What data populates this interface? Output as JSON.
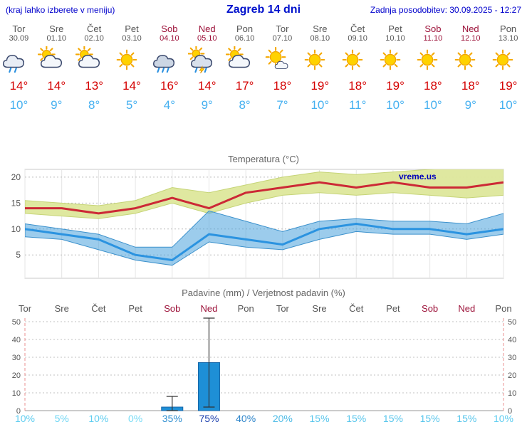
{
  "header": {
    "note": "(kraj lahko izberete v meniju)",
    "title": "Zagreb 14 dni",
    "updated": "Zadnja posodobitev: 30.09.2025 - 12:27"
  },
  "colors": {
    "header_blue": "#0000cc",
    "high_temp": "#d40000",
    "low_temp": "#45b0f0",
    "weekday_text": "#555555",
    "weekend_text": "#9c1038",
    "max_line": "#cc2936",
    "min_line": "#2b93e0",
    "max_band_fill": "#dde79b",
    "min_band_fill": "#4ba3dc",
    "bar_fill": "#1e8fd6",
    "bar_stroke": "#1566a8",
    "watermark_blue": "#0000bb"
  },
  "days": [
    {
      "name": "Tor",
      "date": "30.09",
      "weekend": false,
      "icon": "cloud-rain",
      "high": 14,
      "low": 10
    },
    {
      "name": "Sre",
      "date": "01.10",
      "weekend": false,
      "icon": "sun-cloud",
      "high": 14,
      "low": 9
    },
    {
      "name": "Čet",
      "date": "02.10",
      "weekend": false,
      "icon": "sun-cloud",
      "high": 13,
      "low": 8
    },
    {
      "name": "Pet",
      "date": "03.10",
      "weekend": false,
      "icon": "sun",
      "high": 14,
      "low": 5
    },
    {
      "name": "Sob",
      "date": "04.10",
      "weekend": true,
      "icon": "heavy-rain",
      "high": 16,
      "low": 4
    },
    {
      "name": "Ned",
      "date": "05.10",
      "weekend": true,
      "icon": "storm",
      "high": 14,
      "low": 9
    },
    {
      "name": "Pon",
      "date": "06.10",
      "weekend": false,
      "icon": "sun-cloud",
      "high": 17,
      "low": 8
    },
    {
      "name": "Tor",
      "date": "07.10",
      "weekend": false,
      "icon": "sun-small-cloud",
      "high": 18,
      "low": 7
    },
    {
      "name": "Sre",
      "date": "08.10",
      "weekend": false,
      "icon": "sun",
      "high": 19,
      "low": 10
    },
    {
      "name": "Čet",
      "date": "09.10",
      "weekend": false,
      "icon": "sun",
      "high": 18,
      "low": 11
    },
    {
      "name": "Pet",
      "date": "10.10",
      "weekend": false,
      "icon": "sun",
      "high": 19,
      "low": 10
    },
    {
      "name": "Sob",
      "date": "11.10",
      "weekend": true,
      "icon": "sun",
      "high": 18,
      "low": 10
    },
    {
      "name": "Ned",
      "date": "12.10",
      "weekend": true,
      "icon": "sun",
      "high": 18,
      "low": 9
    },
    {
      "name": "Pon",
      "date": "13.10",
      "weekend": false,
      "icon": "sun",
      "high": 19,
      "low": 10
    }
  ],
  "chart_data": [
    {
      "type": "line",
      "title": "Temperatura (°C)",
      "categories": [
        "Tor",
        "Sre",
        "Čet",
        "Pet",
        "Sob",
        "Ned",
        "Pon",
        "Tor",
        "Sre",
        "Čet",
        "Pet",
        "Sob",
        "Ned",
        "Pon"
      ],
      "ylim": [
        0.5,
        21.5
      ],
      "yticks": [
        5,
        10,
        15,
        20
      ],
      "watermark": "vreme.us",
      "legend_position": "none",
      "grid": true,
      "series": [
        {
          "name": "max-temperature",
          "values": [
            14,
            14,
            13,
            14,
            16,
            14,
            17,
            18,
            19,
            18,
            19,
            18,
            18,
            19
          ],
          "band_high": [
            15.5,
            15,
            14.5,
            15.5,
            18,
            17,
            18.5,
            20,
            21,
            20.5,
            21,
            21.5,
            22,
            22.5
          ],
          "band_low": [
            13,
            12.5,
            12,
            13,
            15,
            13,
            15,
            16.5,
            17,
            16.5,
            17,
            16.5,
            16,
            16.5
          ]
        },
        {
          "name": "min-temperature",
          "values": [
            10,
            9,
            8,
            5,
            4,
            9,
            8,
            7,
            10,
            11,
            10,
            10,
            9,
            10
          ],
          "band_high": [
            11,
            10,
            9,
            6.5,
            6.5,
            13.5,
            11.5,
            9.5,
            11.5,
            12,
            11.5,
            11.5,
            11,
            13
          ],
          "band_low": [
            8.5,
            8,
            6,
            4,
            3,
            7.5,
            6.5,
            6,
            8,
            9.5,
            9,
            9,
            8,
            9
          ]
        }
      ]
    },
    {
      "type": "bar",
      "title": "Padavine (mm) / Verjetnost padavin (%)",
      "categories": [
        "Tor",
        "Sre",
        "Čet",
        "Pet",
        "Sob",
        "Ned",
        "Pon",
        "Tor",
        "Sre",
        "Čet",
        "Pet",
        "Sob",
        "Ned",
        "Pon"
      ],
      "weekend_flags": [
        false,
        false,
        false,
        false,
        true,
        true,
        false,
        false,
        false,
        false,
        false,
        true,
        true,
        false
      ],
      "ylim": [
        0,
        52
      ],
      "yticks": [
        0,
        10,
        20,
        30,
        40,
        50
      ],
      "values": [
        0,
        0,
        0,
        0,
        2,
        27,
        0,
        0,
        0,
        0,
        0,
        0,
        0,
        0
      ],
      "whiskers": [
        null,
        null,
        null,
        null,
        [
          0,
          8
        ],
        [
          2,
          52
        ],
        null,
        null,
        null,
        null,
        null,
        null,
        null,
        null
      ],
      "probabilities": [
        {
          "label": "10%",
          "color": "#5ecdf0"
        },
        {
          "label": "5%",
          "color": "#6ed6f4"
        },
        {
          "label": "10%",
          "color": "#5ecdf0"
        },
        {
          "label": "0%",
          "color": "#78dcf6"
        },
        {
          "label": "35%",
          "color": "#2f8fd0"
        },
        {
          "label": "75%",
          "color": "#1b3fae"
        },
        {
          "label": "40%",
          "color": "#2e85ca"
        },
        {
          "label": "20%",
          "color": "#4cbbe6"
        },
        {
          "label": "15%",
          "color": "#58c6ec"
        },
        {
          "label": "15%",
          "color": "#58c6ec"
        },
        {
          "label": "15%",
          "color": "#58c6ec"
        },
        {
          "label": "15%",
          "color": "#58c6ec"
        },
        {
          "label": "15%",
          "color": "#58c6ec"
        },
        {
          "label": "10%",
          "color": "#5ecdf0"
        }
      ]
    }
  ]
}
